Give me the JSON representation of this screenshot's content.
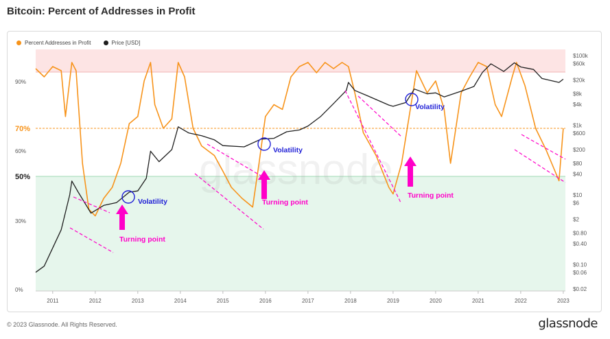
{
  "title": "Bitcoin: Percent of Addresses in Profit",
  "footer": "© 2023 Glassnode. All Rights Reserved.",
  "brand": "glassnode",
  "watermark": "glassnode",
  "colors": {
    "profit": "#f7931a",
    "price": "#1e1e1e",
    "annot_pink": "#ff00c8",
    "annot_blue": "#1f1fd6",
    "top_band": "#fde4e4",
    "bottom_band": "#e6f6ec"
  },
  "chart_data": {
    "type": "line",
    "legend": [
      {
        "name": "Percent Addresses in Profit",
        "color": "#f7931a"
      },
      {
        "name": "Price [USD]",
        "color": "#1e1e1e"
      }
    ],
    "x_ticks": [
      "2011",
      "2012",
      "2013",
      "2014",
      "2015",
      "2016",
      "2017",
      "2018",
      "2019",
      "2020",
      "2021",
      "2022",
      "2023"
    ],
    "left_axis": {
      "ticks": [
        "0%",
        "30%",
        "50%",
        "60%",
        "70%",
        "90%"
      ],
      "highlight": [
        "50%",
        "70%"
      ]
    },
    "right_axis": {
      "scale": "log",
      "ticks": [
        "$100k",
        "$60k",
        "$20k",
        "$8k",
        "$4k",
        "$1k",
        "$600",
        "$200",
        "$80",
        "$40",
        "$10",
        "$6",
        "$2",
        "$0.80",
        "$0.40",
        "$0.10",
        "$0.06",
        "$0.02"
      ]
    },
    "series": [
      {
        "name": "Percent Addresses in Profit",
        "x": [
          2010.6,
          2010.8,
          2011.0,
          2011.2,
          2011.3,
          2011.45,
          2011.55,
          2011.7,
          2011.85,
          2012.0,
          2012.2,
          2012.4,
          2012.6,
          2012.8,
          2013.0,
          2013.15,
          2013.3,
          2013.4,
          2013.6,
          2013.8,
          2013.95,
          2014.1,
          2014.3,
          2014.5,
          2014.8,
          2015.0,
          2015.2,
          2015.45,
          2015.7,
          2015.85,
          2016.0,
          2016.2,
          2016.4,
          2016.6,
          2016.8,
          2017.0,
          2017.2,
          2017.4,
          2017.6,
          2017.8,
          2017.95,
          2018.1,
          2018.3,
          2018.6,
          2018.9,
          2019.0,
          2019.2,
          2019.35,
          2019.55,
          2019.8,
          2020.0,
          2020.2,
          2020.35,
          2020.6,
          2020.8,
          2021.0,
          2021.2,
          2021.4,
          2021.55,
          2021.8,
          2021.9,
          2022.1,
          2022.35,
          2022.6,
          2022.9,
          2023.0
        ],
        "y": [
          96,
          92,
          97,
          95,
          75,
          99,
          95,
          55,
          35,
          32,
          40,
          45,
          55,
          72,
          75,
          90,
          99,
          80,
          70,
          74,
          99,
          92,
          70,
          62,
          58,
          52,
          45,
          40,
          36,
          55,
          75,
          80,
          78,
          92,
          97,
          99,
          94,
          99,
          96,
          99,
          97,
          85,
          68,
          58,
          45,
          42,
          55,
          72,
          95,
          85,
          90,
          78,
          55,
          85,
          92,
          99,
          97,
          80,
          75,
          92,
          99,
          88,
          70,
          60,
          48,
          70
        ]
      },
      {
        "name": "Price [USD]",
        "x": [
          2010.6,
          2010.8,
          2011.0,
          2011.2,
          2011.4,
          2011.45,
          2011.6,
          2011.9,
          2012.2,
          2012.5,
          2012.8,
          2013.0,
          2013.2,
          2013.3,
          2013.5,
          2013.8,
          2013.95,
          2014.2,
          2014.5,
          2014.8,
          2015.0,
          2015.5,
          2015.9,
          2016.2,
          2016.5,
          2016.8,
          2017.0,
          2017.3,
          2017.6,
          2017.9,
          2017.95,
          2018.1,
          2018.4,
          2018.9,
          2019.0,
          2019.3,
          2019.5,
          2019.8,
          2020.0,
          2020.2,
          2020.6,
          2020.9,
          2021.1,
          2021.3,
          2021.6,
          2021.85,
          2022.0,
          2022.3,
          2022.5,
          2022.9,
          2023.0
        ],
        "y": [
          0.06,
          0.09,
          0.3,
          1,
          10,
          25,
          12,
          3,
          5,
          6,
          12,
          13,
          30,
          180,
          90,
          200,
          900,
          600,
          500,
          380,
          260,
          240,
          400,
          420,
          650,
          730,
          950,
          1800,
          4200,
          10000,
          17000,
          10000,
          7000,
          3800,
          3500,
          4500,
          11000,
          8000,
          8500,
          6500,
          9500,
          13000,
          33000,
          58000,
          35000,
          62000,
          47000,
          40000,
          22000,
          17000,
          21000
        ]
      }
    ],
    "annotations": [
      {
        "text": "Turning point",
        "color": "#ff00c8",
        "x": 2012.5
      },
      {
        "text": "Volatility",
        "color": "#1f1fd6",
        "x": 2012.75
      },
      {
        "text": "Turning point",
        "color": "#ff00c8",
        "x": 2015.9
      },
      {
        "text": "Volatility",
        "color": "#1f1fd6",
        "x": 2016.0
      },
      {
        "text": "Turning point",
        "color": "#ff00c8",
        "x": 2019.4
      },
      {
        "text": "Volatility",
        "color": "#1f1fd6",
        "x": 2019.45
      }
    ]
  }
}
